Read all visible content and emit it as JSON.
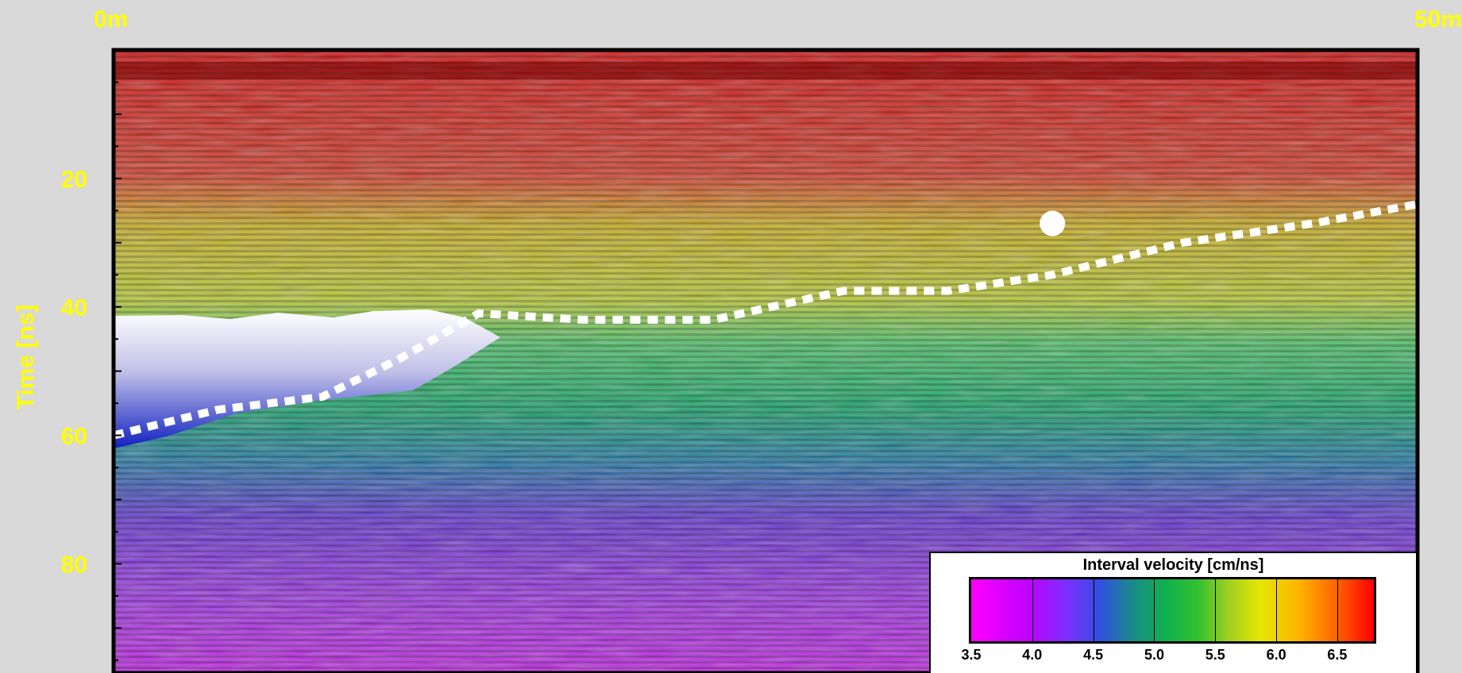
{
  "chart_data": {
    "type": "heatmap",
    "title": "",
    "xlabel": "",
    "ylabel": "Time [ns]",
    "x_range_labels": [
      "0m",
      "50m"
    ],
    "xlim": [
      0,
      50
    ],
    "ylim": [
      0,
      97
    ],
    "yticks": [
      20,
      40,
      60,
      80
    ],
    "ytick_labels": [
      "20",
      "40",
      "60",
      "80"
    ],
    "grid": false,
    "velocity_layers": [
      {
        "time_top": 0,
        "time_bottom": 18,
        "velocity": 6.5
      },
      {
        "time_top": 18,
        "time_bottom": 40,
        "velocity": 5.8
      },
      {
        "time_top": 40,
        "time_bottom": 56,
        "velocity": 5.2
      },
      {
        "time_top": 56,
        "time_bottom": 70,
        "velocity": 4.5
      },
      {
        "time_top": 70,
        "time_bottom": 97,
        "velocity": 4.0
      }
    ],
    "interface_line": {
      "style": "dotted-white",
      "x": [
        0,
        4,
        8,
        11,
        14,
        18,
        23,
        28,
        32,
        36,
        41,
        46,
        50
      ],
      "y": [
        60,
        56,
        54,
        48,
        41,
        42,
        42,
        37.5,
        37.5,
        35,
        30,
        27,
        24
      ]
    },
    "point_marker": {
      "x": 36,
      "y": 27
    },
    "colorbar": {
      "title": "Interval velocity [cm/ns]",
      "tick_labels": [
        "3.5",
        "4.0",
        "4.5",
        "5.0",
        "5.5",
        "6.0",
        "6.5"
      ],
      "range": [
        3.5,
        6.8
      ],
      "placement": "bottom-right"
    }
  },
  "colors": {
    "label_color": "#ffff00",
    "background": "#d9d9d9",
    "frame": "#000000"
  }
}
